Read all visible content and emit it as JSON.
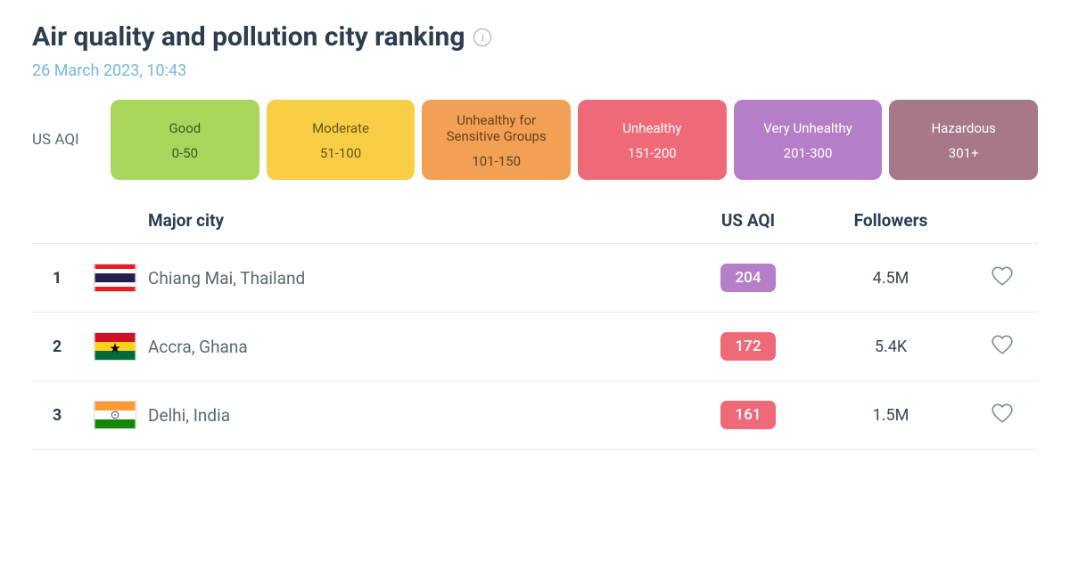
{
  "header": {
    "title": "Air quality and pollution city ranking",
    "timestamp": "26 March 2023, 10:43"
  },
  "legend": {
    "label": "US AQI",
    "items": [
      {
        "name": "Good",
        "range": "0-50",
        "bg": "#a8d65c",
        "text": "#3a5a1e"
      },
      {
        "name": "Moderate",
        "range": "51-100",
        "bg": "#f8ce46",
        "text": "#6b5410"
      },
      {
        "name": "Unhealthy for Sensitive Groups",
        "range": "101-150",
        "bg": "#f2a055",
        "text": "#6b3f16"
      },
      {
        "name": "Unhealthy",
        "range": "151-200",
        "bg": "#ef6a78",
        "text": "#ffffff"
      },
      {
        "name": "Very Unhealthy",
        "range": "201-300",
        "bg": "#b57fc7",
        "text": "#ffffff"
      },
      {
        "name": "Hazardous",
        "range": "301+",
        "bg": "#a7778a",
        "text": "#ffffff"
      }
    ]
  },
  "table": {
    "columns": {
      "city": "Major city",
      "aqi": "US AQI",
      "followers": "Followers"
    },
    "rows": [
      {
        "rank": "1",
        "flag": "thailand",
        "city": "Chiang Mai, Thailand",
        "aqi": "204",
        "aqi_bg": "#b57fc7",
        "followers": "4.5M"
      },
      {
        "rank": "2",
        "flag": "ghana",
        "city": "Accra, Ghana",
        "aqi": "172",
        "aqi_bg": "#ef6a78",
        "followers": "5.4K"
      },
      {
        "rank": "3",
        "flag": "india",
        "city": "Delhi, India",
        "aqi": "161",
        "aqi_bg": "#ef6a78",
        "followers": "1.5M"
      }
    ]
  }
}
